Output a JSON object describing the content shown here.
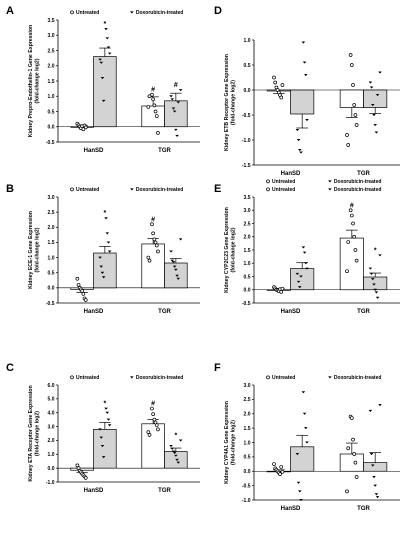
{
  "colors": {
    "treated_bar": "#d3d3d3",
    "untreated_bar": "#ffffff",
    "axis": "#000000"
  },
  "chart_data": [
    {
      "panel": "A",
      "type": "bar",
      "ylabel_lines": [
        "Kidney Prepro-Endothelin-1 Gene Expression",
        "(fold-change log2)"
      ],
      "ylim": [
        -0.5,
        3.5
      ],
      "yticks": [
        -0.5,
        0.0,
        0.5,
        1.0,
        1.5,
        2.0,
        2.5,
        3.0,
        3.5
      ],
      "categories": [
        "HanSD",
        "TGR"
      ],
      "legend": {
        "position": "top",
        "untreated": "Untreated",
        "treated": "Doxorubicin-treated"
      },
      "series": [
        {
          "name": "Untreated",
          "values": [
            0.0,
            0.68
          ],
          "errors": [
            0.05,
            0.3
          ],
          "points": [
            [
              0.1,
              0.05,
              0.0,
              -0.05,
              0.02,
              -0.08,
              0.04,
              -0.02
            ],
            [
              1.05,
              0.9,
              0.7,
              0.5,
              0.35,
              -0.2,
              0.65,
              1.0
            ]
          ],
          "annotations": [
            "",
            "#"
          ]
        },
        {
          "name": "Doxorubicin-treated",
          "values": [
            2.3,
            0.85
          ],
          "errors": [
            0.28,
            0.25
          ],
          "points": [
            [
              3.2,
              2.9,
              2.6,
              2.4,
              2.2,
              2.1,
              1.6,
              0.85
            ],
            [
              1.2,
              1.0,
              0.9,
              0.6,
              0.5,
              -0.1,
              -0.3,
              0.8
            ]
          ],
          "annotations": [
            "*",
            "#"
          ]
        }
      ]
    },
    {
      "panel": "B",
      "type": "bar",
      "ylabel_lines": [
        "Kidney ECE-1 Gene Expression",
        "(fold-change log2)"
      ],
      "ylim": [
        -0.5,
        3.0
      ],
      "yticks": [
        -0.5,
        0.0,
        0.5,
        1.0,
        1.5,
        2.0,
        2.5,
        3.0
      ],
      "categories": [
        "HanSD",
        "TGR"
      ],
      "legend": {
        "position": "top",
        "untreated": "Untreated",
        "treated": "Doxorubicin-treated"
      },
      "series": [
        {
          "name": "Untreated",
          "values": [
            -0.05,
            1.45
          ],
          "errors": [
            0.1,
            0.18
          ],
          "points": [
            [
              0.3,
              0.1,
              0.0,
              -0.05,
              -0.1,
              -0.2,
              -0.35,
              -0.4
            ],
            [
              2.1,
              1.8,
              1.6,
              1.5,
              1.4,
              1.2,
              1.0,
              0.9
            ]
          ],
          "annotations": [
            "",
            "#"
          ]
        },
        {
          "name": "Doxorubicin-treated",
          "values": [
            1.15,
            0.82
          ],
          "errors": [
            0.22,
            0.15
          ],
          "points": [
            [
              2.3,
              1.8,
              1.5,
              1.2,
              1.0,
              0.7,
              0.5,
              0.35
            ],
            [
              1.6,
              1.2,
              0.9,
              0.85,
              0.7,
              0.6,
              0.4,
              0.3
            ]
          ],
          "annotations": [
            "*",
            ""
          ]
        }
      ]
    },
    {
      "panel": "C",
      "type": "bar",
      "ylabel_lines": [
        "Kidney ETA Receptor Gene Expression",
        "(fold-change log2)"
      ],
      "ylim": [
        -1.0,
        6.0
      ],
      "yticks": [
        -1.0,
        0.0,
        1.0,
        2.0,
        3.0,
        4.0,
        5.0,
        6.0
      ],
      "categories": [
        "HanSD",
        "TGR"
      ],
      "legend": {
        "position": "top",
        "untreated": "Untreated",
        "treated": "Doxorubicin-treated"
      },
      "series": [
        {
          "name": "Untreated",
          "values": [
            -0.15,
            3.2
          ],
          "errors": [
            0.15,
            0.3
          ],
          "points": [
            [
              0.2,
              0.0,
              -0.2,
              -0.3,
              -0.4,
              -0.5,
              -0.6,
              -0.7
            ],
            [
              4.3,
              3.9,
              3.5,
              3.3,
              3.1,
              2.8,
              2.6,
              2.4
            ]
          ],
          "annotations": [
            "",
            "#"
          ]
        },
        {
          "name": "Doxorubicin-treated",
          "values": [
            2.8,
            1.2
          ],
          "errors": [
            0.5,
            0.25
          ],
          "points": [
            [
              4.3,
              4.0,
              3.5,
              3.1,
              2.8,
              2.2,
              1.6,
              0.8
            ],
            [
              2.0,
              1.6,
              1.4,
              1.2,
              1.1,
              0.9,
              0.6,
              0.4
            ]
          ],
          "annotations": [
            "*",
            "*"
          ]
        }
      ]
    },
    {
      "panel": "D",
      "type": "bar",
      "ylabel_lines": [
        "Kidney ETB Receptor Gene Expression",
        "(fold-change log2)"
      ],
      "ylim": [
        -1.5,
        1.0
      ],
      "yticks": [
        -1.5,
        -1.0,
        -0.5,
        0.0,
        0.5,
        1.0
      ],
      "categories": [
        "HanSD",
        "TGR"
      ],
      "legend": {
        "position": "bottom",
        "untreated": "Untreated",
        "treated": "Doxorubicin-treated"
      },
      "series": [
        {
          "name": "Untreated",
          "values": [
            -0.02,
            -0.35
          ],
          "errors": [
            0.05,
            0.2
          ],
          "points": [
            [
              0.25,
              0.15,
              0.05,
              0.0,
              -0.05,
              -0.1,
              -0.15,
              0.1
            ],
            [
              0.7,
              0.5,
              0.1,
              -0.3,
              -0.5,
              -0.7,
              -0.9,
              -1.1
            ]
          ],
          "annotations": [
            "",
            ""
          ]
        },
        {
          "name": "Doxorubicin-treated",
          "values": [
            -0.48,
            -0.35
          ],
          "errors": [
            0.28,
            0.12
          ],
          "points": [
            [
              0.95,
              0.55,
              0.3,
              -0.6,
              -0.8,
              -1.0,
              -1.2,
              -1.25
            ],
            [
              0.35,
              0.15,
              0.05,
              -0.3,
              -0.5,
              -0.7,
              -0.85,
              -0.1
            ]
          ],
          "annotations": [
            "",
            ""
          ]
        }
      ]
    },
    {
      "panel": "E",
      "type": "bar",
      "ylabel_lines": [
        "Kidney CYP2C23 Gene Expression",
        "(fold-change log2)"
      ],
      "ylim": [
        -0.5,
        3.5
      ],
      "yticks": [
        -0.5,
        0.0,
        0.5,
        1.0,
        1.5,
        2.0,
        2.5,
        3.0,
        3.5
      ],
      "categories": [
        "HanSD",
        "TGR"
      ],
      "legend": {
        "position": "top",
        "untreated": "Untreated",
        "treated": "Doxorubicin-treated"
      },
      "series": [
        {
          "name": "Untreated",
          "values": [
            0.0,
            1.95
          ],
          "errors": [
            0.05,
            0.3
          ],
          "points": [
            [
              0.1,
              0.05,
              0.0,
              -0.02,
              -0.05,
              0.02,
              -0.08,
              0.04
            ],
            [
              3.0,
              2.8,
              2.5,
              2.0,
              1.5,
              1.1,
              0.7,
              1.8
            ]
          ],
          "annotations": [
            "",
            "#"
          ]
        },
        {
          "name": "Doxorubicin-treated",
          "values": [
            0.8,
            0.48
          ],
          "errors": [
            0.22,
            0.15
          ],
          "points": [
            [
              1.6,
              1.4,
              1.0,
              0.8,
              0.6,
              0.3,
              0.1,
              0.5
            ],
            [
              1.3,
              0.8,
              0.6,
              0.4,
              0.2,
              0.0,
              -0.1,
              -0.3
            ]
          ],
          "annotations": [
            "",
            "*"
          ]
        }
      ]
    },
    {
      "panel": "F",
      "type": "bar",
      "ylabel_lines": [
        "Kidney CYP4A1 Gene Expression",
        "(fold-change log2)"
      ],
      "ylim": [
        -1.0,
        3.0
      ],
      "yticks": [
        -1.0,
        -0.5,
        0.0,
        0.5,
        1.0,
        1.5,
        2.0,
        2.5,
        3.0
      ],
      "categories": [
        "HanSD",
        "TGR"
      ],
      "legend": {
        "position": "top",
        "untreated": "Untreated",
        "treated": "Doxorubicin-treated"
      },
      "series": [
        {
          "name": "Untreated",
          "values": [
            0.0,
            0.6
          ],
          "errors": [
            0.05,
            0.38
          ],
          "points": [
            [
              0.25,
              0.1,
              0.05,
              0.0,
              -0.05,
              -0.1,
              0.15,
              -0.02
            ],
            [
              1.9,
              1.85,
              1.1,
              0.6,
              0.3,
              -0.2,
              -0.7,
              0.8
            ]
          ],
          "annotations": [
            "",
            ""
          ]
        },
        {
          "name": "Doxorubicin-treated",
          "values": [
            0.85,
            0.3
          ],
          "errors": [
            0.4,
            0.35
          ],
          "points": [
            [
              2.75,
              2.0,
              1.5,
              1.0,
              0.6,
              -0.4,
              -0.7,
              -1.0
            ],
            [
              2.3,
              2.1,
              0.6,
              0.2,
              -0.2,
              -0.5,
              -0.8,
              -0.9
            ]
          ],
          "annotations": [
            "",
            ""
          ]
        }
      ]
    }
  ]
}
